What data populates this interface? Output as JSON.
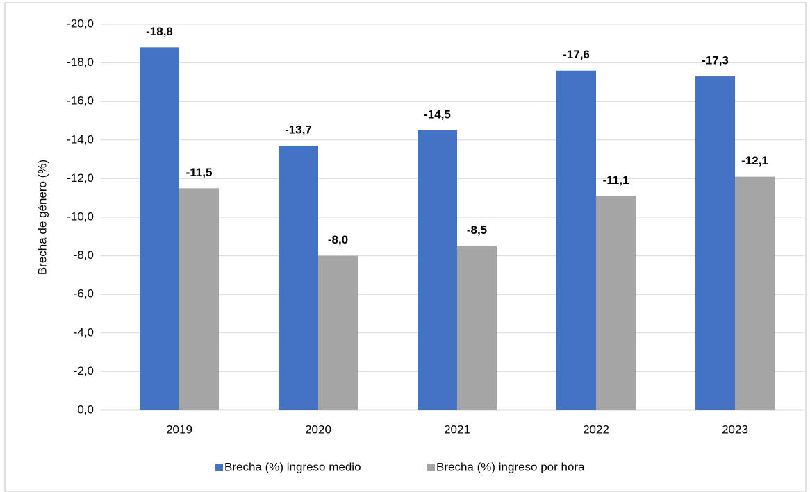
{
  "chart_data": {
    "type": "bar",
    "y_axis_label": "Brecha de género (%)",
    "categories": [
      "2019",
      "2020",
      "2021",
      "2022",
      "2023"
    ],
    "series": [
      {
        "name": "Brecha (%) ingreso medio",
        "color": "#4472c4",
        "values": [
          -18.8,
          -13.7,
          -14.5,
          -17.6,
          -17.3
        ],
        "value_labels": [
          "-18,8",
          "-13,7",
          "-14,5",
          "-17,6",
          "-17,3"
        ]
      },
      {
        "name": "Brecha (%) ingreso por hora",
        "color": "#a5a5a5",
        "values": [
          -11.5,
          -8.0,
          -8.5,
          -11.1,
          -12.1
        ],
        "value_labels": [
          "-11,5",
          "-8,0",
          "-8,5",
          "-11,1",
          "-12,1"
        ]
      }
    ],
    "ylim": [
      0,
      -20
    ],
    "yticks": [
      {
        "value": 0,
        "label": "0,0"
      },
      {
        "value": -2,
        "label": "-2,0"
      },
      {
        "value": -4,
        "label": "-4,0"
      },
      {
        "value": -6,
        "label": "-6,0"
      },
      {
        "value": -8,
        "label": "-8,0"
      },
      {
        "value": -10,
        "label": "-10,0"
      },
      {
        "value": -12,
        "label": "-12,0"
      },
      {
        "value": -14,
        "label": "-14,0"
      },
      {
        "value": -16,
        "label": "-16,0"
      },
      {
        "value": -18,
        "label": "-18,0"
      },
      {
        "value": -20,
        "label": "-20,0"
      }
    ],
    "grid": true,
    "legend": "bottom"
  }
}
